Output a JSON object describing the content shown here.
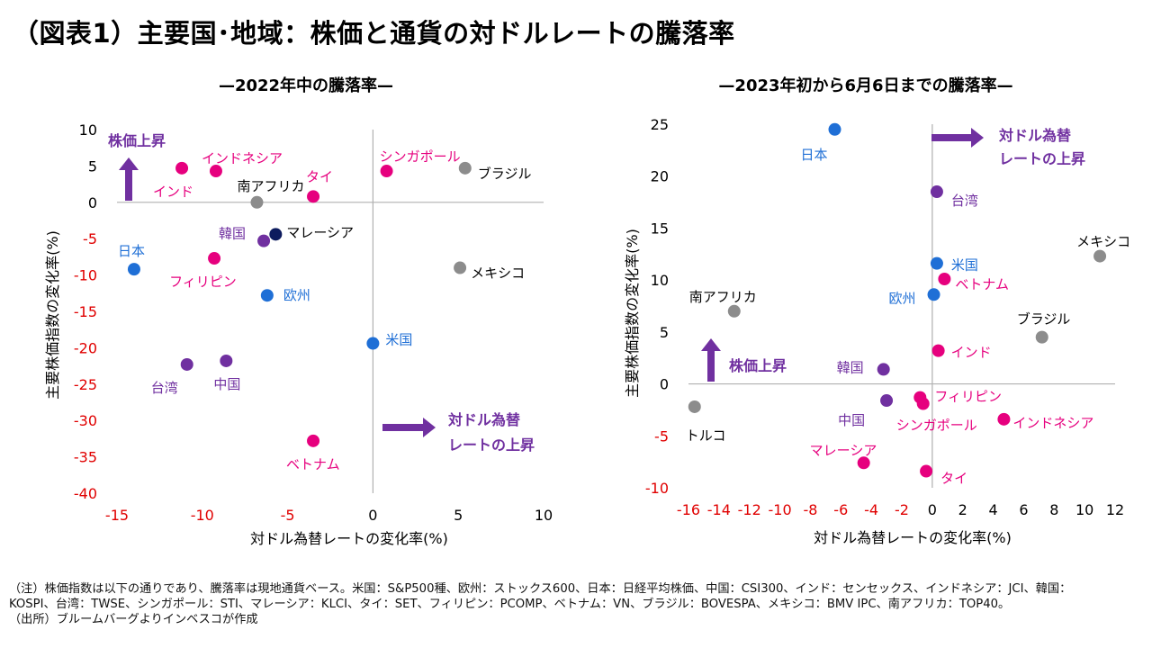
{
  "title": "（図表1）主要国･地域：株価と通貨の対ドルレートの騰落率",
  "colors": {
    "pink": "#e6007e",
    "purple": "#7030a0",
    "blue": "#1f6fd6",
    "gray": "#8c8c8c",
    "navy": "#0d1b5e",
    "red": "#e00000",
    "arrow": "#7030a0"
  },
  "chart_data": [
    {
      "type": "scatter",
      "title": "—2022年中の騰落率—",
      "xlabel": "対ドル為替レートの変化率(%)",
      "ylabel": "主要株価指数の変化率(%)",
      "xlim": [
        -15,
        10
      ],
      "ylim": [
        -40,
        10
      ],
      "xticks": [
        -15,
        -10,
        -5,
        0,
        5,
        10
      ],
      "yticks": [
        10,
        5,
        0,
        -5,
        -10,
        -15,
        -20,
        -25,
        -30,
        -35,
        -40
      ],
      "grid": false,
      "annotations": {
        "stock_up": "株価上昇",
        "fx_up_1": "対ドル為替",
        "fx_up_2": "レートの上昇"
      },
      "points": [
        {
          "label": "インド",
          "x": -11.2,
          "y": 4.7,
          "color": "pink"
        },
        {
          "label": "インドネシア",
          "x": -9.2,
          "y": 4.3,
          "color": "pink"
        },
        {
          "label": "南アフリカ",
          "x": -6.8,
          "y": 0.0,
          "color": "gray"
        },
        {
          "label": "タイ",
          "x": -3.5,
          "y": 0.8,
          "color": "pink"
        },
        {
          "label": "シンガポール",
          "x": 0.8,
          "y": 4.3,
          "color": "pink"
        },
        {
          "label": "ブラジル",
          "x": 5.4,
          "y": 4.7,
          "color": "gray"
        },
        {
          "label": "日本",
          "x": -14.0,
          "y": -9.2,
          "color": "blue"
        },
        {
          "label": "韓国",
          "x": -6.4,
          "y": -5.3,
          "color": "purple"
        },
        {
          "label": "マレーシア",
          "x": -5.7,
          "y": -4.4,
          "color": "navy"
        },
        {
          "label": "フィリピン",
          "x": -9.3,
          "y": -7.7,
          "color": "pink"
        },
        {
          "label": "欧州",
          "x": -6.2,
          "y": -12.8,
          "color": "blue"
        },
        {
          "label": "メキシコ",
          "x": 5.1,
          "y": -9.0,
          "color": "gray"
        },
        {
          "label": "米国",
          "x": 0.0,
          "y": -19.4,
          "color": "blue"
        },
        {
          "label": "台湾",
          "x": -10.9,
          "y": -22.3,
          "color": "purple"
        },
        {
          "label": "中国",
          "x": -8.6,
          "y": -21.8,
          "color": "purple"
        },
        {
          "label": "ベトナム",
          "x": -3.5,
          "y": -32.8,
          "color": "pink"
        }
      ]
    },
    {
      "type": "scatter",
      "title": "—2023年初から6月6日までの騰落率—",
      "xlabel": "対ドル為替レートの変化率(%)",
      "ylabel": "主要株価指数の変化率(%)",
      "xlim": [
        -16,
        12
      ],
      "ylim": [
        -10,
        25
      ],
      "xticks": [
        -16,
        -14,
        -12,
        -10,
        -8,
        -6,
        -4,
        -2,
        0,
        2,
        4,
        6,
        8,
        10,
        12
      ],
      "yticks": [
        25,
        20,
        15,
        10,
        5,
        0,
        -5,
        -10
      ],
      "grid": false,
      "annotations": {
        "stock_up": "株価上昇",
        "fx_up_1": "対ドル為替",
        "fx_up_2": "レートの上昇"
      },
      "points": [
        {
          "label": "日本",
          "x": -6.4,
          "y": 24.5,
          "color": "blue"
        },
        {
          "label": "台湾",
          "x": 0.3,
          "y": 18.5,
          "color": "purple"
        },
        {
          "label": "メキシコ",
          "x": 11.0,
          "y": 12.3,
          "color": "gray"
        },
        {
          "label": "米国",
          "x": 0.3,
          "y": 11.6,
          "color": "blue"
        },
        {
          "label": "ベトナム",
          "x": 0.8,
          "y": 10.1,
          "color": "pink"
        },
        {
          "label": "欧州",
          "x": 0.1,
          "y": 8.6,
          "color": "blue"
        },
        {
          "label": "南アフリカ",
          "x": -13.0,
          "y": 7.0,
          "color": "gray"
        },
        {
          "label": "ブラジル",
          "x": 7.2,
          "y": 4.5,
          "color": "gray"
        },
        {
          "label": "インド",
          "x": 0.4,
          "y": 3.2,
          "color": "pink"
        },
        {
          "label": "韓国",
          "x": -3.2,
          "y": 1.4,
          "color": "purple"
        },
        {
          "label": "トルコ",
          "x": -15.6,
          "y": -2.2,
          "color": "gray"
        },
        {
          "label": "中国",
          "x": -3.0,
          "y": -1.6,
          "color": "purple"
        },
        {
          "label": "フィリピン",
          "x": -0.8,
          "y": -1.3,
          "color": "pink"
        },
        {
          "label": "シンガポール",
          "x": -0.6,
          "y": -1.9,
          "color": "pink"
        },
        {
          "label": "インドネシア",
          "x": 4.7,
          "y": -3.4,
          "color": "pink"
        },
        {
          "label": "マレーシア",
          "x": -4.5,
          "y": -7.6,
          "color": "pink"
        },
        {
          "label": "タイ",
          "x": -0.4,
          "y": -8.4,
          "color": "pink"
        }
      ]
    }
  ],
  "notes": {
    "line1": "（注）株価指数は以下の通りであり、騰落率は現地通貨ベース。米国：S&P500種、欧州：ストックス600、日本：日経平均株価、中国：CSI300、インド：センセックス、インドネシア：JCI、韓国：",
    "line2": "KOSPI、台湾：TWSE、シンガポール：STI、マレーシア：KLCI、タイ：SET、フィリピン：PCOMP、ベトナム：VN、ブラジル：BOVESPA、メキシコ：BMV IPC、南アフリカ：TOP40。",
    "line3": "（出所）ブルームバーグよりインベスコが作成"
  }
}
